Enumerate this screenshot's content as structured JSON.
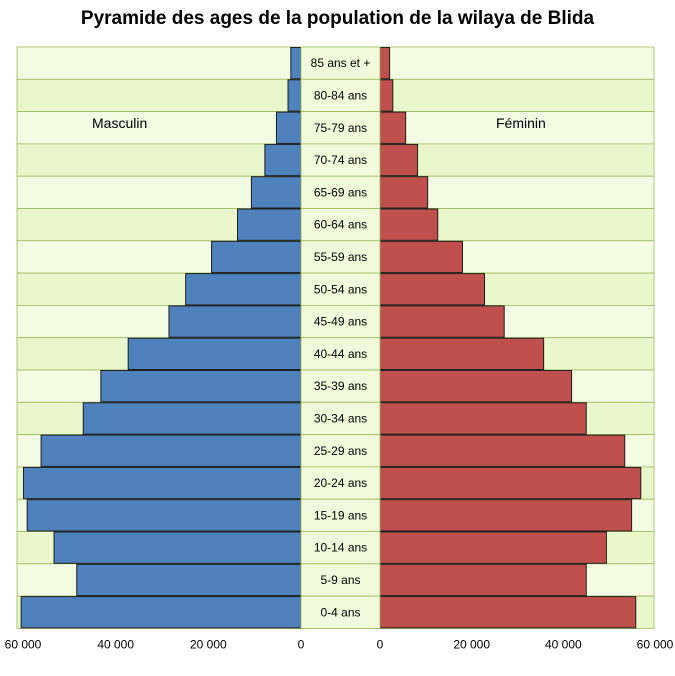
{
  "chart_data": {
    "type": "bar",
    "orientation": "horizontal-pyramid",
    "title": "Pyramide des ages de la population de la wilaya de Blida",
    "categories": [
      "85 ans et +",
      "80-84 ans",
      "75-79 ans",
      "70-74 ans",
      "65-69 ans",
      "60-64 ans",
      "55-59 ans",
      "50-54 ans",
      "45-49 ans",
      "40-44 ans",
      "35-39 ans",
      "30-34 ans",
      "25-29 ans",
      "20-24 ans",
      "15-19 ans",
      "10-14 ans",
      "5-9 ans",
      "0-4 ans"
    ],
    "series": [
      {
        "name": "Masculin",
        "color": "#4f81bd",
        "values": [
          2200,
          2800,
          5300,
          7800,
          10700,
          13700,
          19300,
          24900,
          28500,
          37300,
          43200,
          47000,
          56100,
          59900,
          59100,
          53300,
          48400,
          60400
        ]
      },
      {
        "name": "Féminin",
        "color": "#c0504d",
        "values": [
          2100,
          2800,
          5600,
          8200,
          10400,
          12600,
          18000,
          22800,
          27100,
          35700,
          41800,
          45000,
          53400,
          56900,
          54900,
          49400,
          45000,
          55800
        ]
      }
    ],
    "left_axis": {
      "ticks": [
        "60 000",
        "40 000",
        "20 000",
        "0"
      ],
      "values": [
        60000,
        40000,
        20000,
        0
      ]
    },
    "right_axis": {
      "ticks": [
        "0",
        "20 000",
        "40 000",
        "60 000"
      ],
      "values": [
        0,
        20000,
        40000,
        60000
      ]
    },
    "xlim": [
      0,
      60000
    ],
    "grid": false,
    "legend": "inline-labels"
  }
}
